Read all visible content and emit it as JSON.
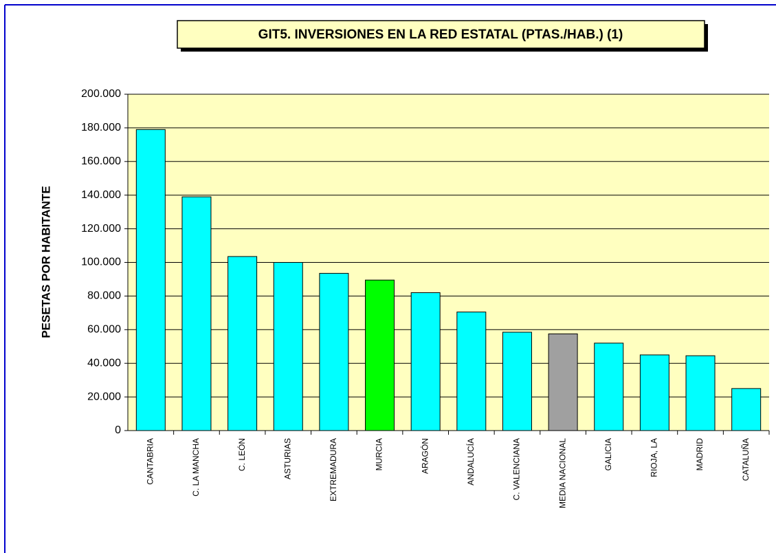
{
  "chart_data": {
    "type": "bar",
    "title": "GIT5. INVERSIONES EN LA RED ESTATAL (PTAS./HAB.) (1)",
    "y_label": "PESETAS POR HABITANTE",
    "categories": [
      "CANTABRIA",
      "C. LA MANCHA",
      "C. LEÓN",
      "ASTURIAS",
      "EXTREMADURA",
      "MURCIA",
      "ARAGÓN",
      "ANDALUCÍA",
      "C. VALENCIANA",
      "MEDIA NACIONAL",
      "GALICIA",
      "RIOJA, LA",
      "MADRID",
      "CATALUÑA"
    ],
    "values": [
      179000,
      139000,
      103500,
      100000,
      93500,
      89500,
      82000,
      70500,
      58500,
      57500,
      52000,
      45000,
      44500,
      25000
    ],
    "colors": [
      "#00ffff",
      "#00ffff",
      "#00ffff",
      "#00ffff",
      "#00ffff",
      "#00ff00",
      "#00ffff",
      "#00ffff",
      "#00ffff",
      "#a0a0a0",
      "#00ffff",
      "#00ffff",
      "#00ffff",
      "#00ffff"
    ],
    "ylim": [
      0,
      200000
    ],
    "yticks": [
      0,
      {
        "value": 20000,
        "label": "20.000"
      },
      {
        "value": 40000,
        "label": "40.000"
      },
      {
        "value": 60000,
        "label": "60.000"
      },
      {
        "value": 80000,
        "label": "80.000"
      },
      {
        "value": 100000,
        "label": "100.000"
      },
      {
        "value": 120000,
        "label": "120.000"
      },
      {
        "value": 140000,
        "label": "140.000"
      },
      {
        "value": 160000,
        "label": "160.000"
      },
      {
        "value": 180000,
        "label": "180.000"
      },
      {
        "value": 200000,
        "label": "200.000"
      }
    ],
    "grid": true
  }
}
